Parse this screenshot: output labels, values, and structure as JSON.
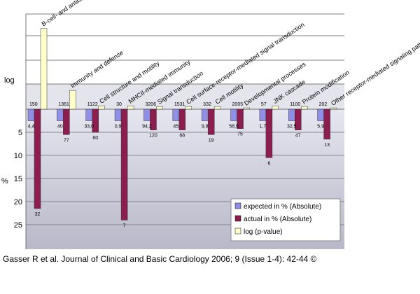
{
  "chart_data": {
    "type": "bar",
    "categories": [
      "B-cell- and antibody-mediated immunity",
      "Immunity and defense",
      "Cell structure and motility",
      "MHCII-mediated immunity",
      "Signal transduction",
      "Cell surface-receptor-mediated signal transduction",
      "Cell motility",
      "Developmental processes",
      "JNK cascade",
      "Protein modification",
      "Other receptor-mediated signaling pathway"
    ],
    "counts": [
      "150",
      "1361",
      "1122",
      "30",
      "3206",
      "1531",
      "332",
      "2005",
      "57",
      "1100",
      "202"
    ],
    "expected_labels": [
      "4,4",
      "40",
      "33,0",
      "0,9",
      "94,2",
      "45",
      "9,8",
      "58,9",
      "1,7",
      "32,5",
      "5,9"
    ],
    "actual_labels": [
      "32",
      "77",
      "60",
      "7",
      "120",
      "68",
      "19",
      "75",
      "6",
      "47",
      "13"
    ],
    "series": [
      {
        "name": "expected in % (Absolute)",
        "color": "#8f8fe6",
        "values": [
          2.5,
          2.5,
          2.5,
          2.5,
          2.5,
          2.5,
          2.5,
          2.5,
          2.5,
          2.5,
          2.5
        ]
      },
      {
        "name": "actual in % (Absolute)",
        "color": "#8c1d4f",
        "values": [
          21.5,
          5.5,
          5,
          24,
          4.5,
          4.5,
          5.5,
          4.2,
          10.5,
          4.5,
          6.5
        ]
      },
      {
        "name": "log (p-value)",
        "color": "#ffffcc",
        "values": [
          12.0,
          2.8,
          0.5,
          0.5,
          0.4,
          0.4,
          0.4,
          0.2,
          0.5,
          0.4,
          0.2
        ]
      }
    ],
    "y_label_top": "log",
    "y_label_bottom": "%",
    "y_ticks": [
      "5",
      "10",
      "15",
      "20",
      "25"
    ],
    "y_tick_values": [
      5,
      10,
      15,
      20,
      25
    ],
    "ylim_percent": [
      0,
      30
    ],
    "legend_position": "bottom-right",
    "grid": true
  },
  "caption": "Gasser R et al. Journal of Clinical and Basic Cardiology 2006; 9 (Issue 1-4): 42-44 ©"
}
